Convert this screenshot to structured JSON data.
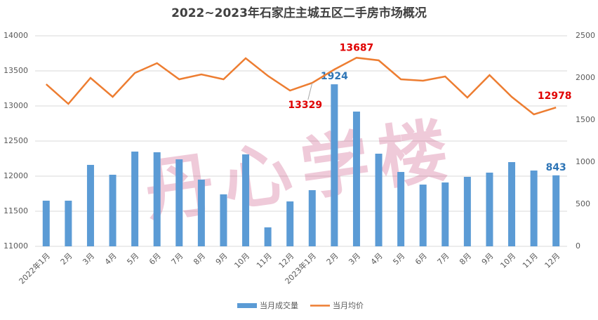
{
  "chart_data": {
    "type": "bar-line",
    "title": "2022~2023年石家庄主城五区二手房市场概况",
    "watermark": "丹心学楼",
    "categories": [
      "2022年1月",
      "2月",
      "3月",
      "4月",
      "5月",
      "6月",
      "7月",
      "8月",
      "9月",
      "10月",
      "11月",
      "12月",
      "2023年1月",
      "2月",
      "3月",
      "4月",
      "5月",
      "6月",
      "7月",
      "8月",
      "9月",
      "10月",
      "11月",
      "12月"
    ],
    "series": [
      {
        "name": "当月成交量",
        "type": "bar",
        "axis": "y2",
        "color": "#5b9bd5",
        "label_color": "#2e75b6",
        "values": [
          542,
          542,
          967,
          850,
          1125,
          1117,
          1033,
          792,
          617,
          1092,
          225,
          533,
          667,
          1924,
          1600,
          1100,
          883,
          733,
          758,
          825,
          875,
          1000,
          900,
          843
        ],
        "value_labels": [
          null,
          null,
          null,
          null,
          null,
          null,
          null,
          null,
          null,
          null,
          null,
          null,
          null,
          "1924",
          null,
          null,
          null,
          null,
          null,
          null,
          null,
          null,
          null,
          "843"
        ]
      },
      {
        "name": "当月均价",
        "type": "line",
        "axis": "y",
        "color": "#ed7d31",
        "label_color": "#e00000",
        "values": [
          13310,
          13030,
          13400,
          13130,
          13470,
          13610,
          13380,
          13450,
          13380,
          13680,
          13430,
          13220,
          13329,
          13520,
          13687,
          13650,
          13380,
          13360,
          13420,
          13120,
          13440,
          13130,
          12880,
          12978
        ],
        "value_labels": [
          null,
          null,
          null,
          null,
          null,
          null,
          null,
          null,
          null,
          null,
          null,
          null,
          "13329",
          null,
          "13687",
          null,
          null,
          null,
          null,
          null,
          null,
          null,
          null,
          "12978"
        ]
      }
    ],
    "ylim": [
      11000,
      14000
    ],
    "yticks": [
      11000,
      11500,
      12000,
      12500,
      13000,
      13500,
      14000
    ],
    "y2lim": [
      0,
      2500
    ],
    "y2ticks": [
      0,
      500,
      1000,
      1500,
      2000,
      2500
    ],
    "grid": true,
    "legend": "bottom"
  }
}
